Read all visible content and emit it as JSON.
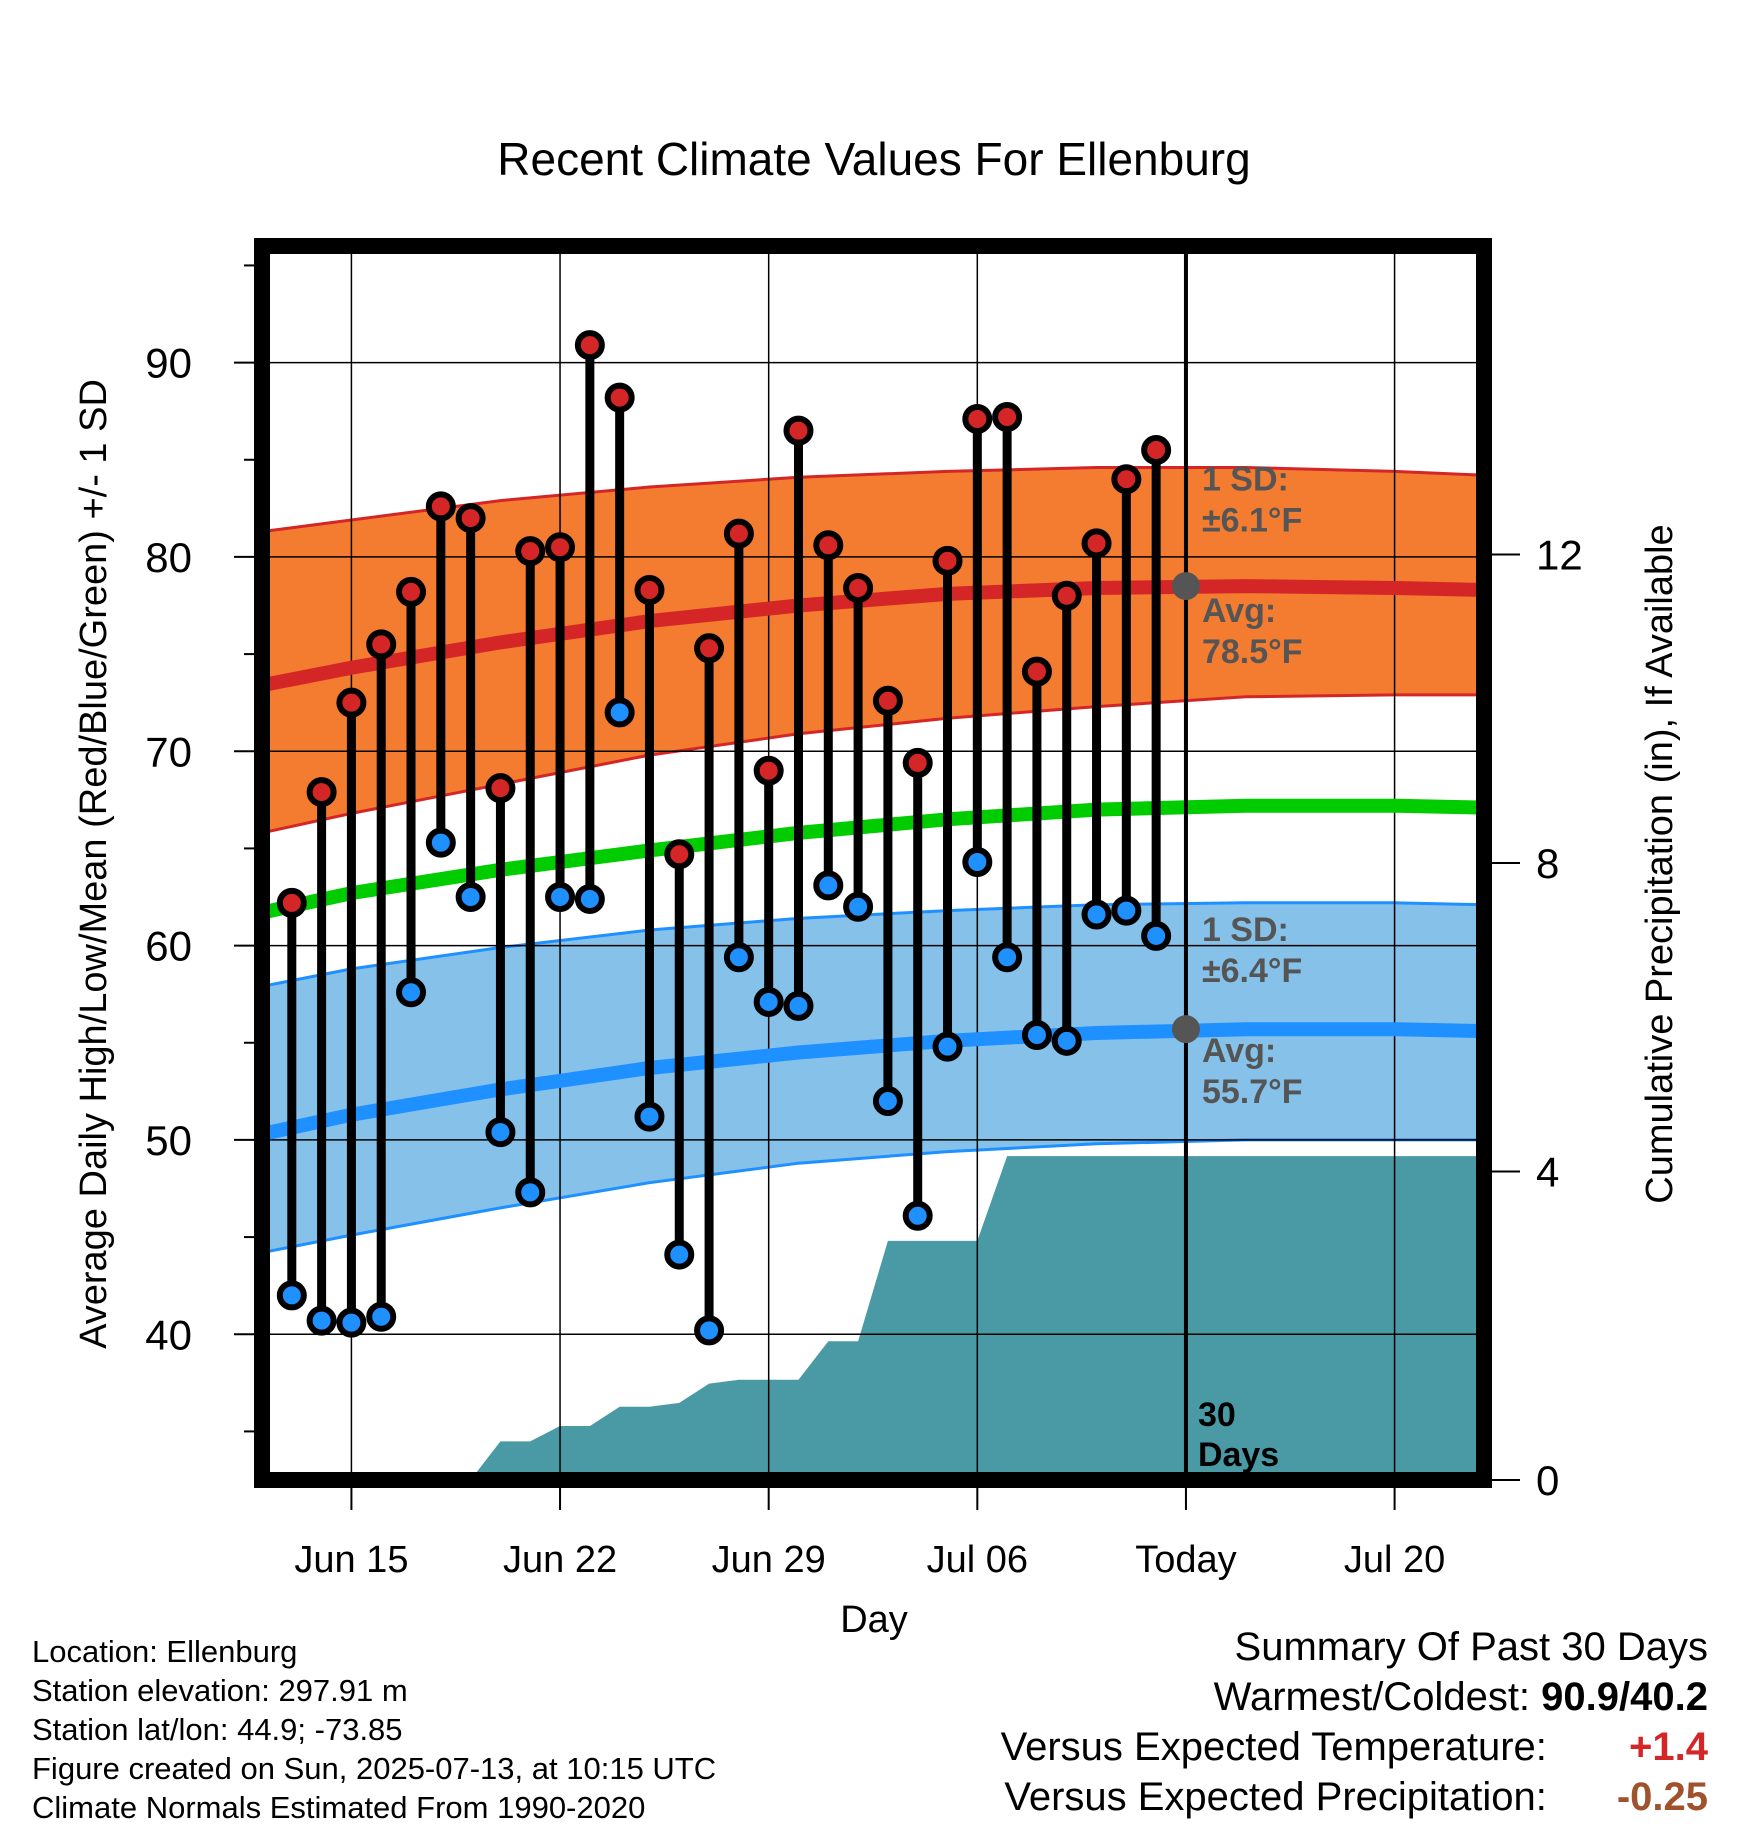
{
  "chart_data": {
    "type": "line",
    "title": "Recent Climate Values For Ellenburg",
    "xlabel": "Day",
    "ylabel": "Average Daily High/Low/Mean (Red/Blue/Green) +/- 1 SD",
    "y2label": "Cumulative Precipitation (in), If Available",
    "x_ticks": [
      {
        "date": "2025-06-15",
        "label": "Jun 15"
      },
      {
        "date": "2025-06-22",
        "label": "Jun 22"
      },
      {
        "date": "2025-06-29",
        "label": "Jun 29"
      },
      {
        "date": "2025-07-06",
        "label": "Jul 06"
      },
      {
        "date": "2025-07-13",
        "label": "Today"
      },
      {
        "date": "2025-07-20",
        "label": "Jul 20"
      }
    ],
    "xlim": [
      "2025-06-12",
      "2025-07-23"
    ],
    "ylim": [
      32.5,
      96
    ],
    "y_ticks": [
      40,
      50,
      60,
      70,
      80,
      90
    ],
    "y2lim": [
      0,
      16
    ],
    "y2_ticks": [
      0,
      4,
      8,
      12
    ],
    "grid": true,
    "today": "2025-07-13",
    "daily": {
      "dates": [
        "2025-06-13",
        "2025-06-14",
        "2025-06-15",
        "2025-06-16",
        "2025-06-17",
        "2025-06-18",
        "2025-06-19",
        "2025-06-20",
        "2025-06-21",
        "2025-06-22",
        "2025-06-23",
        "2025-06-24",
        "2025-06-25",
        "2025-06-26",
        "2025-06-27",
        "2025-06-28",
        "2025-06-29",
        "2025-06-30",
        "2025-07-01",
        "2025-07-02",
        "2025-07-03",
        "2025-07-04",
        "2025-07-05",
        "2025-07-06",
        "2025-07-07",
        "2025-07-08",
        "2025-07-09",
        "2025-07-10",
        "2025-07-11",
        "2025-07-12"
      ],
      "highs": [
        62.2,
        67.9,
        72.5,
        75.5,
        78.2,
        82.6,
        82.0,
        68.1,
        80.3,
        80.5,
        90.9,
        88.2,
        78.3,
        64.7,
        75.3,
        81.2,
        69.0,
        86.5,
        80.6,
        78.4,
        72.6,
        69.4,
        79.8,
        87.1,
        87.2,
        74.1,
        78.0,
        80.7,
        84.0,
        85.5
      ],
      "lows": [
        42.0,
        40.7,
        40.6,
        40.9,
        57.6,
        65.3,
        62.5,
        50.4,
        47.3,
        62.5,
        62.4,
        72.0,
        51.2,
        44.1,
        40.2,
        59.4,
        57.1,
        56.9,
        63.1,
        62.0,
        52.0,
        46.1,
        54.8,
        64.3,
        59.4,
        55.4,
        55.1,
        61.6,
        61.8,
        60.5
      ],
      "high_color": "#d42626",
      "low_color": "#1e90ff"
    },
    "normals": {
      "dates": [
        "2025-06-12",
        "2025-06-15",
        "2025-06-20",
        "2025-06-25",
        "2025-06-30",
        "2025-07-05",
        "2025-07-10",
        "2025-07-15",
        "2025-07-20",
        "2025-07-23"
      ],
      "high_mean": [
        73.4,
        74.3,
        75.6,
        76.7,
        77.5,
        78.1,
        78.4,
        78.5,
        78.4,
        78.3
      ],
      "high_sd_upper": [
        81.3,
        81.9,
        82.9,
        83.6,
        84.1,
        84.4,
        84.6,
        84.6,
        84.4,
        84.2
      ],
      "high_sd_lower": [
        65.8,
        66.8,
        68.3,
        69.8,
        70.9,
        71.7,
        72.3,
        72.8,
        72.9,
        72.9
      ],
      "mean": [
        61.7,
        62.7,
        63.9,
        64.9,
        65.8,
        66.5,
        67.0,
        67.2,
        67.2,
        67.1
      ],
      "low_mean": [
        50.3,
        51.3,
        52.6,
        53.7,
        54.5,
        55.1,
        55.5,
        55.7,
        55.7,
        55.6
      ],
      "low_sd_upper": [
        57.9,
        58.8,
        59.9,
        60.8,
        61.4,
        61.8,
        62.1,
        62.2,
        62.2,
        62.1
      ],
      "low_sd_lower": [
        44.2,
        45.1,
        46.5,
        47.8,
        48.8,
        49.4,
        49.8,
        50.0,
        50.0,
        50.0
      ],
      "high_band_color": "#f47c30",
      "high_line_color": "#d42626",
      "mean_line_color": "#00cc00",
      "low_band_color": "#85c1e9",
      "low_line_color": "#1e90ff"
    },
    "precipitation": {
      "dates": [
        "2025-06-12",
        "2025-06-19",
        "2025-06-20",
        "2025-06-21",
        "2025-06-22",
        "2025-06-23",
        "2025-06-24",
        "2025-06-25",
        "2025-06-26",
        "2025-06-27",
        "2025-06-28",
        "2025-06-29",
        "2025-06-30",
        "2025-07-01",
        "2025-07-02",
        "2025-07-03",
        "2025-07-04",
        "2025-07-05",
        "2025-07-06",
        "2025-07-07",
        "2025-07-23"
      ],
      "cumulative": [
        0,
        0,
        0.5,
        0.5,
        0.7,
        0.7,
        0.95,
        0.95,
        1.0,
        1.25,
        1.3,
        1.3,
        1.3,
        1.8,
        1.8,
        3.1,
        3.1,
        3.1,
        3.1,
        4.2,
        4.2
      ],
      "color": "#4a9aa6"
    },
    "annotations": {
      "high_sd_label": "1 SD:",
      "high_sd_value": "±6.1°F",
      "high_avg_label": "Avg:",
      "high_avg_value": "78.5°F",
      "high_avg": 78.5,
      "low_sd_label": "1 SD:",
      "low_sd_value": "±6.4°F",
      "low_avg_label": "Avg:",
      "low_avg_value": "55.7°F",
      "low_avg": 55.7,
      "window_label_1": "30",
      "window_label_2": "Days"
    }
  },
  "footer": {
    "location": "Location: Ellenburg",
    "elevation": "Station elevation: 297.91 m",
    "latlon": "Station lat/lon: 44.9; -73.85",
    "created": "Figure created on Sun, 2025-07-13, at 10:15 UTC",
    "normals": "Climate Normals Estimated From 1990-2020"
  },
  "summary": {
    "title": "Summary Of Past 30 Days",
    "warmest_coldest_label": "Warmest/Coldest:",
    "warmest_coldest_value": "90.9/40.2",
    "temp_label": "Versus Expected Temperature:",
    "temp_value": "+1.4",
    "temp_color": "#d42626",
    "precip_label": "Versus Expected Precipitation:",
    "precip_value": "-0.25",
    "precip_color": "#a0522d"
  }
}
